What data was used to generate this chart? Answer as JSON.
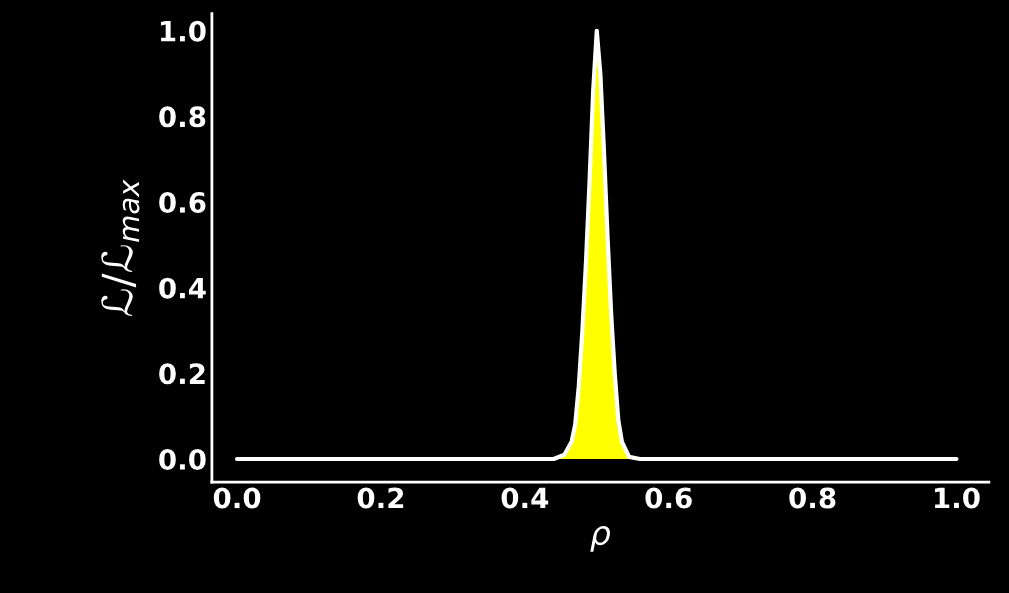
{
  "chart_data": {
    "type": "area",
    "xlabel": "ρ",
    "ylabel": "ℒ/ℒ$_{max}$",
    "x": [
      0.0,
      0.44,
      0.455,
      0.465,
      0.47,
      0.475,
      0.48,
      0.485,
      0.49,
      0.495,
      0.5,
      0.505,
      0.51,
      0.515,
      0.52,
      0.525,
      0.53,
      0.535,
      0.545,
      0.56,
      1.0
    ],
    "series": [
      {
        "color": "#ffff00",
        "values": [
          0.0,
          0.0,
          0.01,
          0.04,
          0.08,
          0.17,
          0.3,
          0.46,
          0.65,
          0.86,
          1.0,
          0.9,
          0.72,
          0.52,
          0.34,
          0.2,
          0.09,
          0.04,
          0.005,
          0.0,
          0.0
        ]
      }
    ],
    "xlim": [
      -0.035,
      1.045
    ],
    "ylim": [
      -0.054,
      1.04
    ],
    "xticks": [
      {
        "value": 0.0,
        "label": "0.0"
      },
      0.2,
      0.4,
      0.6,
      0.8,
      {
        "value": 1.0,
        "label": "1.0"
      }
    ],
    "yticks": [
      {
        "value": 0.0,
        "label": "0.0"
      },
      0.2,
      0.4,
      0.6,
      0.8,
      {
        "value": 1.0,
        "label": "1.0"
      }
    ],
    "grid": false,
    "legend": false
  }
}
